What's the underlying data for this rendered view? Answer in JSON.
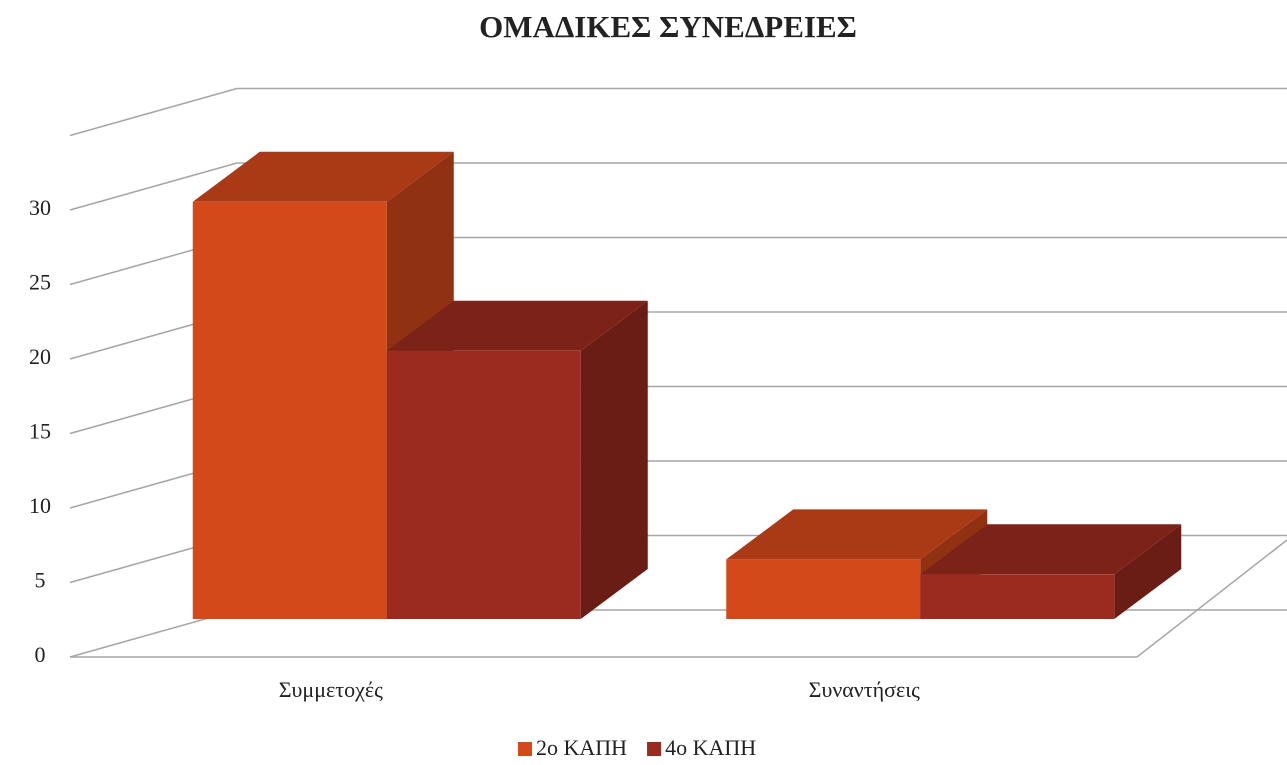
{
  "chart_data": {
    "type": "bar3d",
    "title": "ΟΜΑΔΙΚΕΣ ΣΥΝΕΔΡΕΙΕΣ",
    "categories": [
      "Συμμετοχές",
      "Συναντήσεις"
    ],
    "series": [
      {
        "name": "2ο ΚΑΠΗ",
        "color": "#d4491a",
        "values": [
          28,
          4
        ]
      },
      {
        "name": "4ο ΚΑΠΗ",
        "color": "#9c2b1f",
        "values": [
          18,
          3
        ]
      }
    ],
    "ylim": [
      0,
      35
    ],
    "yticks": [
      0,
      5,
      10,
      15,
      20,
      25,
      30
    ],
    "grid": true,
    "legend": "bottom"
  }
}
